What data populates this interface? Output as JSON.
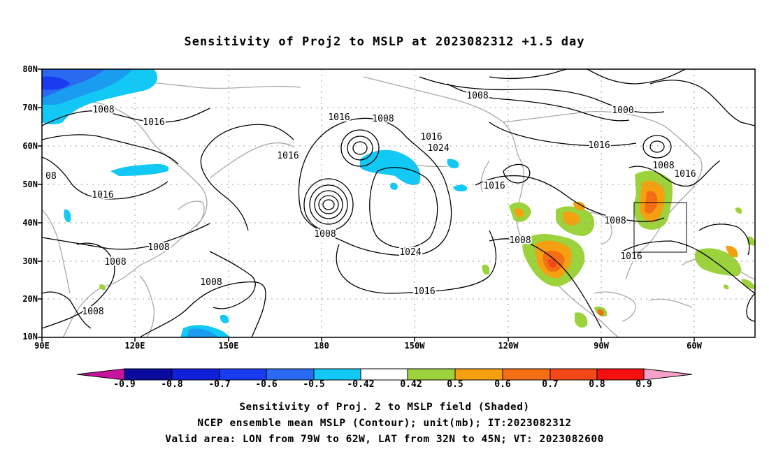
{
  "title": "Sensitivity of Proj2 to MSLP at 2023082312 +1.5 day",
  "axes": {
    "y_ticks": [
      "80N",
      "70N",
      "60N",
      "50N",
      "40N",
      "30N",
      "20N",
      "10N"
    ],
    "x_ticks": [
      "90E",
      "120E",
      "150E",
      "180",
      "150W",
      "120W",
      "90W",
      "60W"
    ]
  },
  "contour_labels": {
    "l1": "1008",
    "l2": "1016",
    "l3": "08",
    "l4": "1016",
    "l5": "1008",
    "l6": "1008",
    "l7": "1008",
    "l8": "1008",
    "l9": "1016",
    "l10": "1008",
    "l11": "1016",
    "l12": "1024",
    "l13": "1008",
    "l14": "1024",
    "l15": "1016",
    "l16": "1008",
    "l17": "1000",
    "l18": "1016",
    "l19": "1016",
    "l20": "1008",
    "l21": "1016",
    "l22": "1008",
    "l23": "1008",
    "l24": "1016"
  },
  "colorbar": {
    "labels": [
      "-0.9",
      "-0.8",
      "-0.7",
      "-0.6",
      "-0.5",
      "-0.42",
      "0.42",
      "0.5",
      "0.6",
      "0.7",
      "0.8",
      "0.9"
    ],
    "colors": {
      "low_arrow": "#c8139e",
      "neg": [
        "#0a0aa0",
        "#1020d8",
        "#1a3cf0",
        "#2a6af0",
        "#1a9cf0",
        "#12c8f5"
      ],
      "mid": "#ffffff",
      "pos": [
        "#9cd23c",
        "#f5a010",
        "#f56e14",
        "#f54818",
        "#f51010"
      ],
      "high_arrow": "#f5a0c8"
    }
  },
  "captions": {
    "line1": "Sensitivity of Proj. 2 to MSLP field (Shaded)",
    "line2": "NCEP ensemble mean MSLP (Contour); unit(mb); IT:2023082312",
    "line3": "Valid area: LON from 79W to 62W, LAT from 32N to 45N; VT: 2023082600"
  }
}
